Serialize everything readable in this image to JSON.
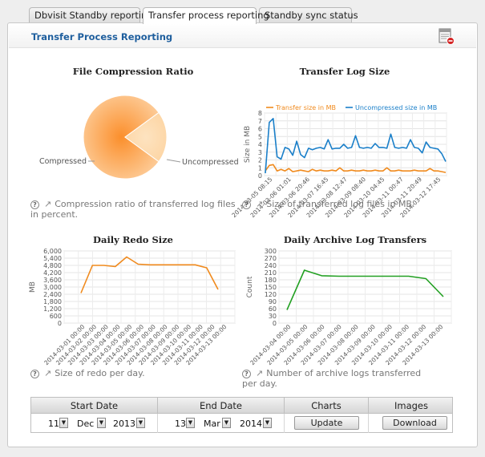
{
  "tabs": [
    {
      "label": "Dbvisit Standby reporting"
    },
    {
      "label": "Transfer process reporting"
    },
    {
      "label": "Standby sync status"
    }
  ],
  "panel": {
    "title": "Transfer Process Reporting",
    "pdf_icon": "pdf-export-icon"
  },
  "charts": {
    "compression": {
      "title": "File Compression Ratio",
      "caption": "Compression ratio of transferred log files in percent.",
      "chart_data": {
        "type": "pie",
        "title": "File Compression Ratio",
        "slices": [
          {
            "label": "Compressed",
            "value": 80
          },
          {
            "label": "Uncompressed",
            "value": 20
          }
        ],
        "colors": [
          "#f99a3d",
          "#fdd9a8"
        ]
      }
    },
    "transfer_log": {
      "title": "Transfer Log Size",
      "caption": "Size of transferred log files in MB.",
      "chart_data": {
        "type": "line",
        "title": "Transfer Log Size",
        "ylabel": "Size in MB",
        "ylim": [
          0,
          8
        ],
        "yticks": [
          0,
          1,
          2,
          3,
          4,
          5,
          6,
          7,
          8
        ],
        "grid": true,
        "legend_placement": "top",
        "xtick_labels": [
          "2014-03-05 08:15",
          "2014-03-06 01:01",
          "2014-03-06 20:46",
          "2014-03-07 16:45",
          "2014-03-08 12:47",
          "2014-03-09 08:40",
          "2014-03-10 04:45",
          "2014-03-11 00:47",
          "2014-03-11 20:49",
          "2014-03-12 17:45"
        ],
        "series": [
          {
            "name": "Transfer size in MB",
            "color": "#f08a1d",
            "values": [
              0.6,
              1.3,
              1.4,
              0.6,
              0.8,
              0.6,
              0.9,
              0.5,
              0.6,
              0.7,
              0.6,
              0.5,
              0.8,
              0.6,
              0.7,
              0.6,
              0.6,
              0.7,
              0.6,
              1.0,
              0.6,
              0.6,
              0.7,
              0.6,
              0.6,
              0.7,
              0.6,
              0.6,
              0.7,
              0.6,
              0.6,
              1.0,
              0.6,
              0.6,
              0.7,
              0.6,
              0.6,
              0.6,
              0.7,
              0.6,
              0.6,
              0.6,
              0.9,
              0.6,
              0.6,
              0.5,
              0.4
            ]
          },
          {
            "name": "Uncompressed size in MB",
            "color": "#1a7fc9",
            "values": [
              0.3,
              6.8,
              7.3,
              2.4,
              2.1,
              3.6,
              3.4,
              2.6,
              4.4,
              2.7,
              2.3,
              3.5,
              3.3,
              3.5,
              3.6,
              3.4,
              4.6,
              3.4,
              3.5,
              3.5,
              4.0,
              3.5,
              3.6,
              5.1,
              3.6,
              3.5,
              3.6,
              3.5,
              4.1,
              3.6,
              3.6,
              3.5,
              5.3,
              3.6,
              3.5,
              3.6,
              3.5,
              4.6,
              3.6,
              3.5,
              2.9,
              4.3,
              3.6,
              3.5,
              3.4,
              2.8,
              1.8
            ]
          }
        ]
      }
    },
    "redo": {
      "title": "Daily Redo Size",
      "caption": "Size of redo per day.",
      "chart_data": {
        "type": "line",
        "title": "Daily Redo Size",
        "ylabel": "MB",
        "ylim": [
          0,
          6000
        ],
        "yticks": [
          "0",
          "600",
          "1,200",
          "1,800",
          "2,400",
          "3,000",
          "3,600",
          "4,200",
          "4,800",
          "5,400",
          "6,000"
        ],
        "grid": true,
        "categories": [
          "2014-03-01 00:00",
          "2014-03-02 00:00",
          "2014-03-03 00:00",
          "2014-03-04 00:00",
          "2014-03-05 00:00",
          "2014-03-06 00:00",
          "2014-03-07 00:00",
          "2014-03-08 00:00",
          "2014-03-09 00:00",
          "2014-03-10 00:00",
          "2014-03-11 00:00",
          "2014-03-12 00:00",
          "2014-03-13 00:00"
        ],
        "series": [
          {
            "color": "#f08a1d",
            "values": [
              2500,
              4800,
              4800,
              4700,
              5500,
              4900,
              4850,
              4850,
              4850,
              4850,
              4850,
              4600,
              2800
            ]
          }
        ]
      }
    },
    "archive": {
      "title": "Daily Archive Log Transfers",
      "caption": "Number of archive logs transferred per day.",
      "chart_data": {
        "type": "line",
        "title": "Daily Archive Log Transfers",
        "ylabel": "Count",
        "ylim": [
          0,
          300
        ],
        "yticks": [
          "0",
          "30",
          "60",
          "90",
          "120",
          "150",
          "180",
          "210",
          "240",
          "270",
          "300"
        ],
        "grid": true,
        "categories": [
          "2014-03-04 00:00",
          "2014-03-05 00:00",
          "2014-03-06 00:00",
          "2014-03-07 00:00",
          "2014-03-08 00:00",
          "2014-03-09 00:00",
          "2014-03-10 00:00",
          "2014-03-11 00:00",
          "2014-03-12 00:00",
          "2014-03-13 00:00"
        ],
        "series": [
          {
            "color": "#22a022",
            "values": [
              55,
              220,
              197,
              195,
              195,
              195,
              195,
              195,
              185,
              110
            ]
          }
        ]
      }
    }
  },
  "controls": {
    "headers": {
      "start": "Start Date",
      "end": "End Date",
      "charts": "Charts",
      "images": "Images"
    },
    "start": {
      "day": "11",
      "month": "Dec",
      "year": "2013"
    },
    "end": {
      "day": "13",
      "month": "Mar",
      "year": "2014"
    },
    "update_label": "Update",
    "download_label": "Download",
    "dropdown_glyph": "▼"
  }
}
